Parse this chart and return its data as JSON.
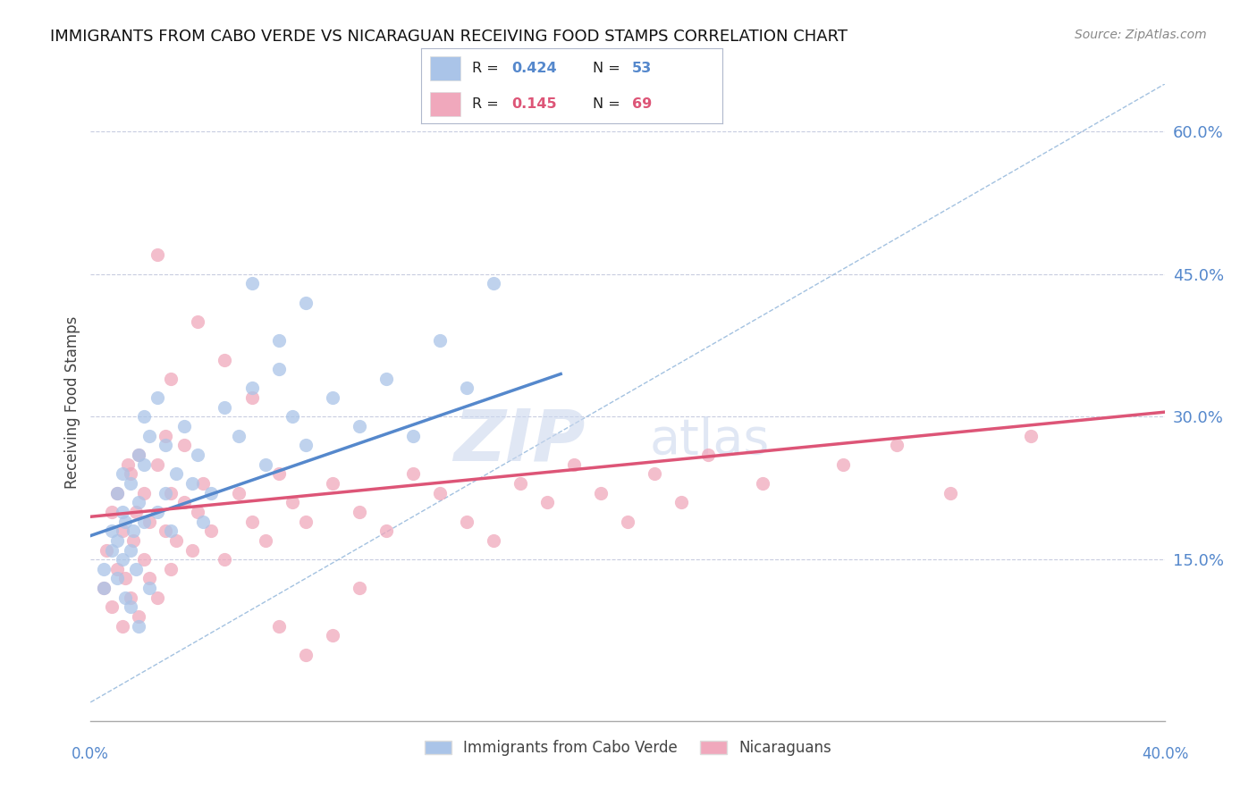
{
  "title": "IMMIGRANTS FROM CABO VERDE VS NICARAGUAN RECEIVING FOOD STAMPS CORRELATION CHART",
  "source": "Source: ZipAtlas.com",
  "xmin": 0.0,
  "xmax": 0.4,
  "ymin": -0.02,
  "ymax": 0.65,
  "ylabel_ticks": [
    0.15,
    0.3,
    0.45,
    0.6
  ],
  "ylabel_labels": [
    "15.0%",
    "30.0%",
    "45.0%",
    "60.0%"
  ],
  "blue_color": "#aac4e8",
  "pink_color": "#f0a8bc",
  "trend_blue": "#5588cc",
  "trend_pink": "#dd5577",
  "ref_line_color": "#99bbdd",
  "watermark_color": "#ccd8ee",
  "cabo_verde_x": [
    0.005,
    0.005,
    0.008,
    0.008,
    0.01,
    0.01,
    0.01,
    0.012,
    0.012,
    0.012,
    0.013,
    0.013,
    0.015,
    0.015,
    0.015,
    0.016,
    0.017,
    0.018,
    0.018,
    0.018,
    0.02,
    0.02,
    0.02,
    0.022,
    0.022,
    0.025,
    0.025,
    0.028,
    0.028,
    0.03,
    0.032,
    0.035,
    0.038,
    0.04,
    0.042,
    0.045,
    0.05,
    0.055,
    0.06,
    0.065,
    0.07,
    0.075,
    0.08,
    0.09,
    0.1,
    0.11,
    0.12,
    0.13,
    0.14,
    0.15,
    0.06,
    0.07,
    0.08
  ],
  "cabo_verde_y": [
    0.14,
    0.12,
    0.16,
    0.18,
    0.13,
    0.17,
    0.22,
    0.15,
    0.2,
    0.24,
    0.11,
    0.19,
    0.1,
    0.16,
    0.23,
    0.18,
    0.14,
    0.08,
    0.21,
    0.26,
    0.19,
    0.25,
    0.3,
    0.12,
    0.28,
    0.2,
    0.32,
    0.22,
    0.27,
    0.18,
    0.24,
    0.29,
    0.23,
    0.26,
    0.19,
    0.22,
    0.31,
    0.28,
    0.33,
    0.25,
    0.35,
    0.3,
    0.27,
    0.32,
    0.29,
    0.34,
    0.28,
    0.38,
    0.33,
    0.44,
    0.44,
    0.38,
    0.42
  ],
  "nicaraguan_x": [
    0.005,
    0.006,
    0.008,
    0.008,
    0.01,
    0.01,
    0.012,
    0.012,
    0.013,
    0.014,
    0.015,
    0.015,
    0.016,
    0.017,
    0.018,
    0.018,
    0.02,
    0.02,
    0.022,
    0.022,
    0.025,
    0.025,
    0.028,
    0.028,
    0.03,
    0.03,
    0.032,
    0.035,
    0.035,
    0.038,
    0.04,
    0.042,
    0.045,
    0.05,
    0.055,
    0.06,
    0.065,
    0.07,
    0.075,
    0.08,
    0.09,
    0.1,
    0.11,
    0.12,
    0.13,
    0.14,
    0.15,
    0.16,
    0.17,
    0.18,
    0.19,
    0.2,
    0.21,
    0.22,
    0.23,
    0.25,
    0.28,
    0.3,
    0.32,
    0.35,
    0.03,
    0.025,
    0.04,
    0.05,
    0.06,
    0.07,
    0.08,
    0.09,
    0.1
  ],
  "nicaraguan_y": [
    0.12,
    0.16,
    0.1,
    0.2,
    0.14,
    0.22,
    0.08,
    0.18,
    0.13,
    0.25,
    0.11,
    0.24,
    0.17,
    0.2,
    0.09,
    0.26,
    0.15,
    0.22,
    0.13,
    0.19,
    0.11,
    0.25,
    0.18,
    0.28,
    0.14,
    0.22,
    0.17,
    0.21,
    0.27,
    0.16,
    0.2,
    0.23,
    0.18,
    0.15,
    0.22,
    0.19,
    0.17,
    0.24,
    0.21,
    0.19,
    0.23,
    0.2,
    0.18,
    0.24,
    0.22,
    0.19,
    0.17,
    0.23,
    0.21,
    0.25,
    0.22,
    0.19,
    0.24,
    0.21,
    0.26,
    0.23,
    0.25,
    0.27,
    0.22,
    0.28,
    0.34,
    0.47,
    0.4,
    0.36,
    0.32,
    0.08,
    0.05,
    0.07,
    0.12
  ],
  "blue_trend_x0": 0.0,
  "blue_trend_y0": 0.175,
  "blue_trend_x1": 0.175,
  "blue_trend_y1": 0.345,
  "pink_trend_x0": 0.0,
  "pink_trend_y0": 0.195,
  "pink_trend_x1": 0.4,
  "pink_trend_y1": 0.305
}
